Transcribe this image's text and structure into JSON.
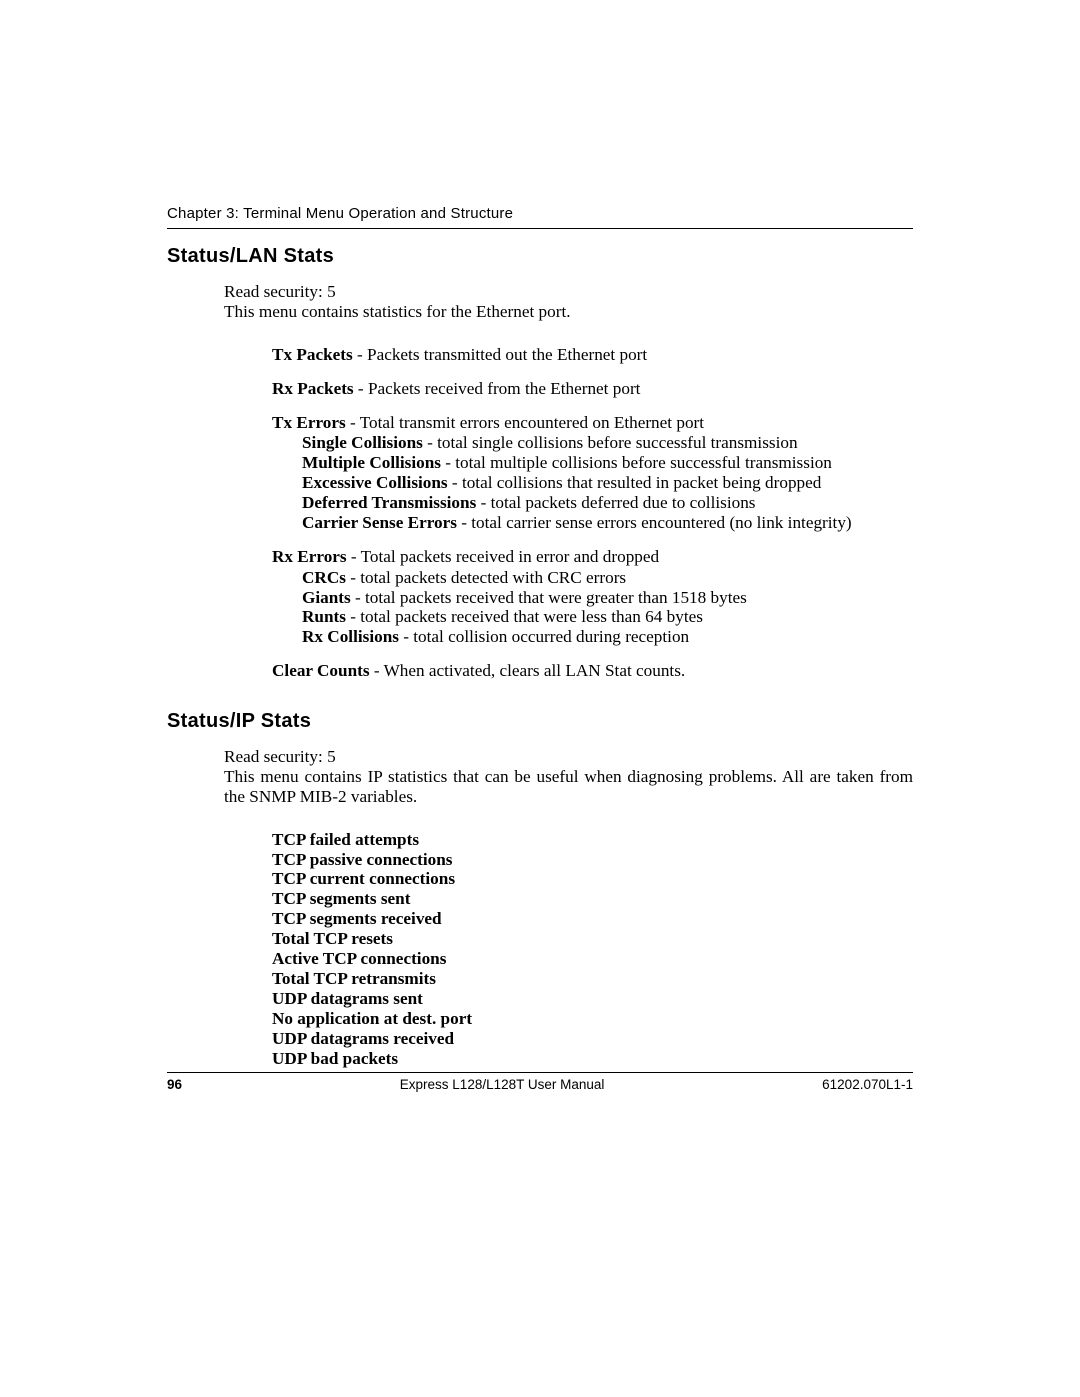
{
  "chapter_line": "Chapter 3: Terminal Menu Operation and Structure",
  "sections": {
    "lan": {
      "title": "Status/LAN Stats",
      "read_security": "Read security: 5",
      "intro": "This menu contains statistics for the Ethernet port.",
      "items": {
        "tx_packets": {
          "label": "Tx Packets",
          "desc": " - Packets transmitted out the Ethernet port"
        },
        "rx_packets": {
          "label": "Rx Packets",
          "desc": " - Packets received from the Ethernet port"
        },
        "tx_errors": {
          "label": "Tx Errors",
          "desc": " - Total transmit errors encountered on Ethernet port",
          "subs": {
            "single": {
              "label": "Single Collisions",
              "desc": " - total single collisions before successful transmission"
            },
            "multiple": {
              "label": "Multiple Collisions",
              "desc": " - total multiple collisions before successful transmission"
            },
            "excessive": {
              "label": "Excessive Collisions",
              "desc": " - total collisions that resulted in packet being dropped"
            },
            "deferred": {
              "label": "Deferred Transmissions",
              "desc": " - total packets deferred due to collisions"
            },
            "carrier": {
              "label": "Carrier Sense Errors",
              "desc": " - total carrier sense errors encountered (no link integrity)"
            }
          }
        },
        "rx_errors": {
          "label": "Rx Errors",
          "desc": " - Total packets received in error and dropped",
          "subs": {
            "crcs": {
              "label": "CRCs",
              "desc": " - total packets detected with CRC errors"
            },
            "giants": {
              "label": "Giants",
              "desc": " - total packets received that were greater than 1518 bytes"
            },
            "runts": {
              "label": "Runts",
              "desc": " - total packets received that were less than 64 bytes"
            },
            "rxcol": {
              "label": "Rx Collisions",
              "desc": " - total collision occurred during reception"
            }
          }
        },
        "clear": {
          "label": "Clear Counts",
          "desc": " - When activated, clears all LAN Stat counts."
        }
      }
    },
    "ip": {
      "title": "Status/IP Stats",
      "read_security": "Read security: 5",
      "intro": "This menu contains IP statistics that can be useful when diagnosing problems. All are taken from the SNMP MIB-2 variables.",
      "list": [
        "TCP failed attempts",
        "TCP passive connections",
        "TCP current connections",
        "TCP segments sent",
        "TCP segments received",
        "Total TCP resets",
        "Active TCP connections",
        "Total TCP retransmits",
        "UDP datagrams sent",
        "No application at dest. port",
        "UDP datagrams received",
        "UDP bad packets"
      ]
    }
  },
  "footer": {
    "page": "96",
    "center": "Express L128/L128T User Manual",
    "right": "61202.070L1-1"
  }
}
